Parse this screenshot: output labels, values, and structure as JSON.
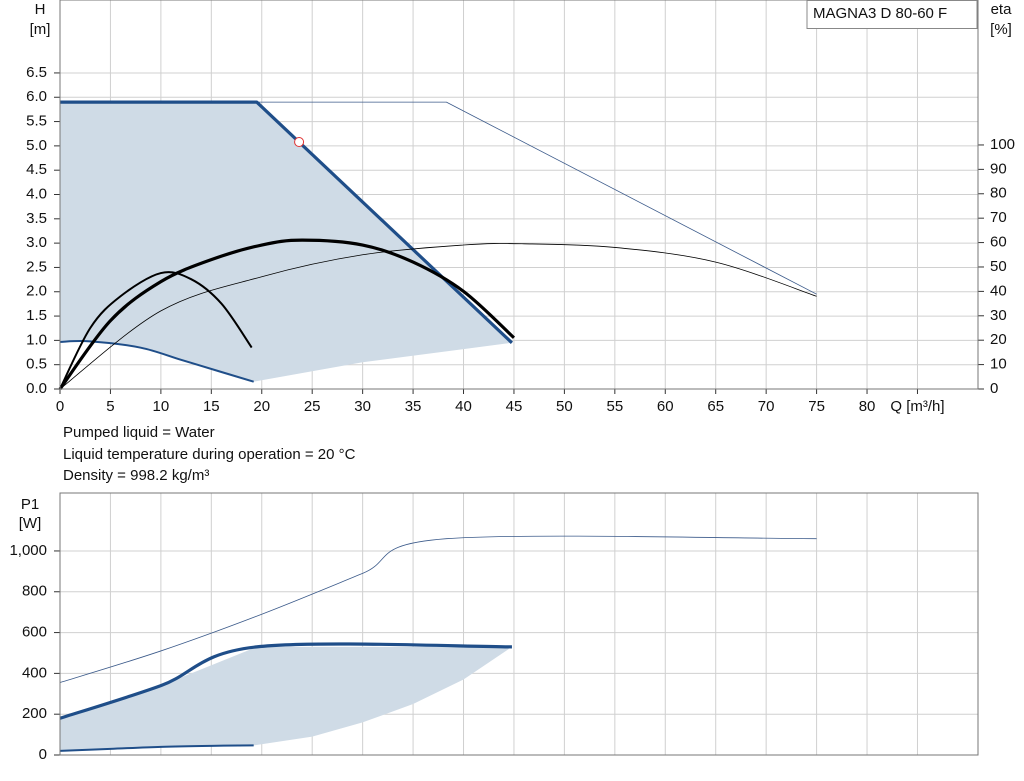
{
  "chart_data": [
    {
      "type": "line",
      "y_label": "H",
      "y_unit": "[m]",
      "y2_label": "eta",
      "y2_unit": "[%]",
      "title": "MAGNA3 D 80-60 F",
      "notes": [
        "Pumped liquid = Water",
        "Liquid temperature during operation = 20 °C",
        "Density = 998.2 kg/m³"
      ],
      "xlim": [
        0,
        91
      ],
      "xticks": [
        0,
        5,
        10,
        15,
        20,
        25,
        30,
        35,
        40,
        45,
        50,
        55,
        60,
        65,
        70,
        75,
        80,
        {
          "value": 85,
          "label": "Q [m³/h]"
        }
      ],
      "ylim": [
        0,
        8
      ],
      "yticks": [
        {
          "value": 0,
          "label": "0.0"
        },
        0.5,
        {
          "value": 1,
          "label": "1.0"
        },
        1.5,
        {
          "value": 2,
          "label": "2.0"
        },
        2.5,
        {
          "value": 3,
          "label": "3.0"
        },
        3.5,
        {
          "value": 4,
          "label": "4.0"
        },
        4.5,
        {
          "value": 5,
          "label": "5.0"
        },
        5.5,
        {
          "value": 6,
          "label": "6.0"
        },
        6.5
      ],
      "y2lim": [
        0,
        159.4
      ],
      "y2ticks": [
        0,
        10,
        20,
        30,
        40,
        50,
        60,
        70,
        80,
        90,
        100
      ],
      "grid": true,
      "series": [
        {
          "style": "area",
          "color": "#cfdbe6",
          "x": [
            0,
            19.5,
            44.8,
            40,
            30,
            19.2,
            16,
            12,
            8,
            3,
            0
          ],
          "values": [
            5.9,
            5.9,
            0.95,
            0.82,
            0.55,
            0.15,
            0.35,
            0.6,
            0.85,
            0.98,
            0.97
          ]
        },
        {
          "style": "thin",
          "color": "#3b5a8a",
          "x": [
            19.5,
            38.3,
            75
          ],
          "values": [
            5.9,
            5.9,
            1.95
          ]
        },
        {
          "style": "thick",
          "color": "#1f4e89",
          "x": [
            0,
            19.5,
            44.8
          ],
          "values": [
            5.9,
            5.9,
            0.95
          ]
        },
        {
          "style": "medium",
          "color": "#1f4e89",
          "x": [
            0,
            3,
            8,
            12,
            16,
            19.2
          ],
          "values": [
            0.97,
            0.98,
            0.85,
            0.6,
            0.35,
            0.15
          ]
        },
        {
          "style": "thin",
          "color": "#000000",
          "axis": "y2",
          "x": [
            0,
            10,
            20,
            30,
            40,
            46,
            55,
            65,
            75
          ],
          "values": [
            0,
            32,
            46,
            55,
            59,
            59.5,
            58,
            52,
            38
          ]
        },
        {
          "style": "medium",
          "color": "#000000",
          "axis": "y2",
          "x": [
            0,
            3,
            6,
            10,
            13,
            16,
            19
          ],
          "values": [
            0,
            25,
            38,
            47.5,
            45,
            35,
            17
          ]
        },
        {
          "style": "thick",
          "color": "#000000",
          "axis": "y2",
          "x": [
            0,
            5,
            10,
            15,
            20,
            24,
            30,
            35,
            40,
            45
          ],
          "values": [
            0,
            28,
            44,
            53,
            59,
            61,
            59,
            52,
            40,
            21
          ]
        }
      ],
      "operating_point": {
        "x": 23.7,
        "value": 5.08,
        "color": "#e03030"
      }
    },
    {
      "type": "line",
      "y_label": "P1",
      "y_unit": "[W]",
      "xlim": [
        0,
        91
      ],
      "ylim": [
        0,
        1284
      ],
      "yticks": [
        0,
        200,
        400,
        600,
        800,
        {
          "value": 1000,
          "label": "1,000"
        }
      ],
      "grid": true,
      "series": [
        {
          "style": "area",
          "color": "#cfdbe6",
          "x": [
            0,
            10,
            19.5,
            44.8,
            40,
            35,
            30,
            25,
            19.2,
            15,
            10,
            5,
            0
          ],
          "values": [
            180,
            340,
            530,
            530,
            370,
            250,
            160,
            90,
            47,
            45,
            40,
            30,
            20
          ]
        },
        {
          "style": "thin",
          "color": "#3b5a8a",
          "x": [
            0,
            10,
            20,
            30,
            38.3,
            75
          ],
          "values": [
            355,
            510,
            690,
            890,
            1060,
            1060
          ]
        },
        {
          "style": "thick",
          "color": "#1f4e89",
          "x": [
            0,
            10,
            19.5,
            44.8
          ],
          "values": [
            180,
            340,
            530,
            530
          ]
        },
        {
          "style": "medium",
          "color": "#1f4e89",
          "x": [
            0,
            5,
            10,
            15,
            19.2
          ],
          "values": [
            20,
            30,
            40,
            45,
            47
          ]
        }
      ]
    }
  ]
}
